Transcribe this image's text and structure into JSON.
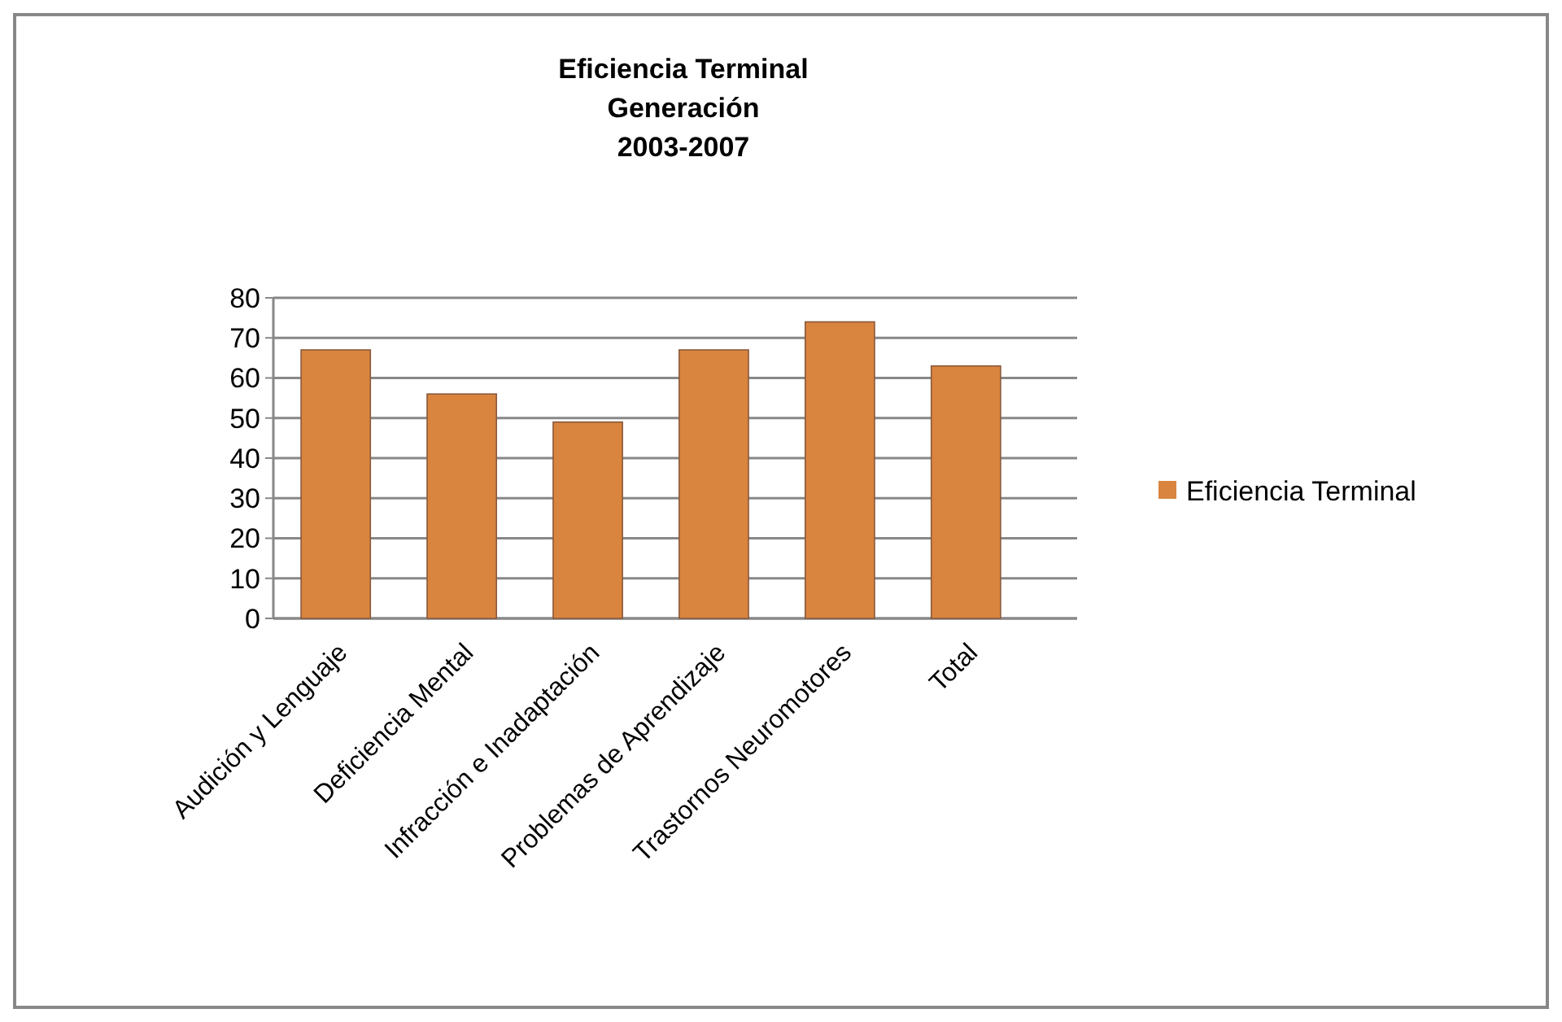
{
  "chart_data": {
    "type": "bar",
    "title": "Eficiencia Terminal\nGeneración\n2003-2007",
    "categories": [
      "Audición y Lenguaje",
      "Deficiencia Mental",
      "Infracción e Inadaptación",
      "Problemas de Aprendizaje",
      "Trastornos Neuromotores",
      "Total"
    ],
    "series": [
      {
        "name": "Eficiencia Terminal",
        "color": "#d9843f",
        "values": [
          67,
          56,
          49,
          67,
          74,
          63
        ]
      }
    ],
    "ylim": [
      0,
      80
    ],
    "yticks": [
      0,
      10,
      20,
      30,
      40,
      50,
      60,
      70,
      80
    ],
    "grid": "y",
    "legend": "right"
  }
}
